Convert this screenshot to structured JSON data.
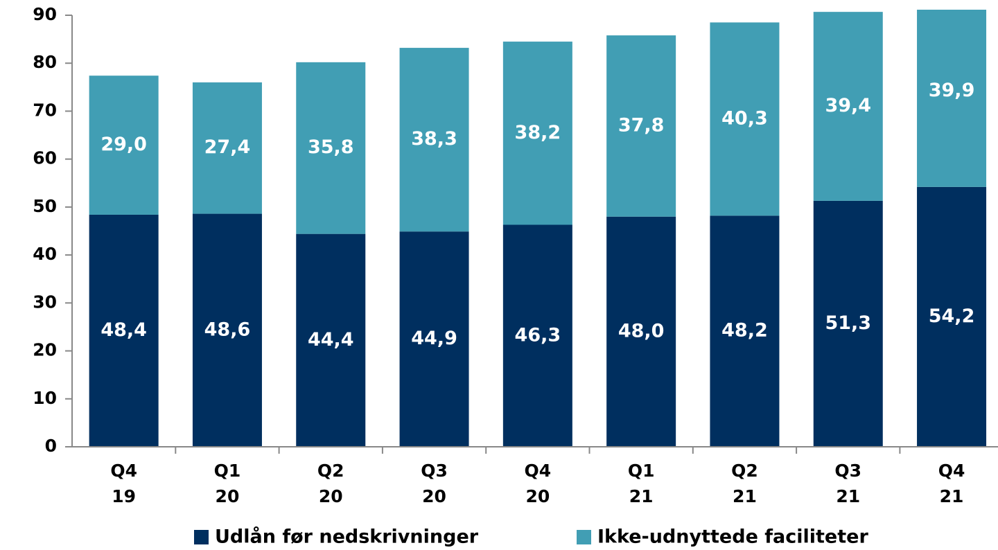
{
  "chart_data": {
    "type": "stacked-bar",
    "categories": [
      [
        "Q4",
        "19"
      ],
      [
        "Q1",
        "20"
      ],
      [
        "Q2",
        "20"
      ],
      [
        "Q3",
        "20"
      ],
      [
        "Q4",
        "20"
      ],
      [
        "Q1",
        "21"
      ],
      [
        "Q2",
        "21"
      ],
      [
        "Q3",
        "21"
      ],
      [
        "Q4",
        "21"
      ]
    ],
    "series": [
      {
        "name": "Udlån før nedskrivninger",
        "color": "#002f5f",
        "values": [
          48.4,
          48.6,
          44.4,
          44.9,
          46.3,
          48.0,
          48.2,
          51.3,
          54.2
        ],
        "value_labels": [
          "48,4",
          "48,6",
          "44,4",
          "44,9",
          "46,3",
          "48,0",
          "48,2",
          "51,3",
          "54,2"
        ]
      },
      {
        "name": "Ikke-udnyttede faciliteter",
        "color": "#419eb4",
        "values": [
          29.0,
          27.4,
          35.8,
          38.3,
          38.2,
          37.8,
          40.3,
          39.4,
          39.9
        ],
        "value_labels": [
          "29,0",
          "27,4",
          "35,8",
          "38,3",
          "38,2",
          "37,8",
          "40,3",
          "39,4",
          "39,9"
        ]
      }
    ],
    "ylim": [
      0,
      90
    ],
    "yticks": [
      0,
      10,
      20,
      30,
      40,
      50,
      60,
      70,
      80,
      90
    ],
    "grid": false,
    "legend": "bottom"
  }
}
